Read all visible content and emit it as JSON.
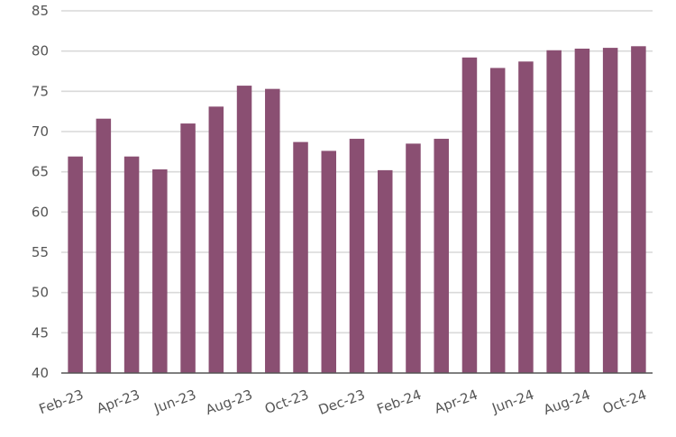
{
  "chart_data": {
    "type": "bar",
    "categories": [
      "Feb-23",
      "Mar-23",
      "Apr-23",
      "May-23",
      "Jun-23",
      "Jul-23",
      "Aug-23",
      "Sep-23",
      "Oct-23",
      "Nov-23",
      "Dec-23",
      "Jan-24",
      "Feb-24",
      "Mar-24",
      "Apr-24",
      "May-24",
      "Jun-24",
      "Jul-24",
      "Aug-24",
      "Sep-24",
      "Oct-24"
    ],
    "values": [
      66.9,
      71.6,
      66.9,
      65.3,
      71.0,
      73.1,
      75.7,
      75.3,
      68.7,
      67.6,
      69.1,
      65.2,
      68.5,
      69.1,
      79.2,
      77.9,
      78.7,
      80.1,
      80.3,
      80.4,
      80.6
    ],
    "x_tick_labels": [
      "Feb-23",
      "Apr-23",
      "Jun-23",
      "Aug-23",
      "Oct-23",
      "Dec-23",
      "Feb-24",
      "Apr-24",
      "Jun-24",
      "Aug-24",
      "Oct-24"
    ],
    "y_ticks": [
      40,
      45,
      50,
      55,
      60,
      65,
      70,
      75,
      80,
      85
    ],
    "ylim": [
      40,
      85
    ],
    "title": "",
    "xlabel": "",
    "ylabel": "",
    "grid": true,
    "legend": "none",
    "bar_color": "#8a4f72"
  }
}
